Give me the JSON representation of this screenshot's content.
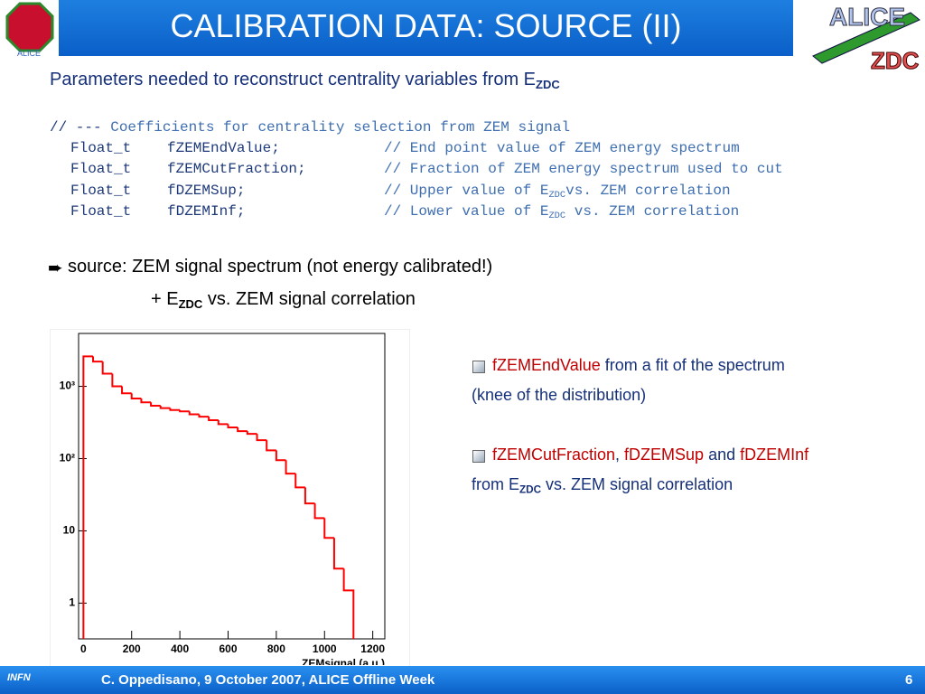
{
  "header": {
    "title": "CALIBRATION DATA: SOURCE (II)",
    "logo_left": "ALICE",
    "logo_right": [
      "ALICE",
      "ZDC"
    ]
  },
  "intro": [
    {
      "text": "Parameters needed to reconstruct centrality variables from E"
    },
    {
      "text": "ZDC",
      "sub": true
    }
  ],
  "code": {
    "heading": [
      {
        "text": "// --- ",
        "color": "#1f3a7a"
      },
      {
        "text": "Coefficients for centrality selection from ZEM signal",
        "color": "#3f6fb0"
      }
    ],
    "lines": [
      {
        "type": "Float_t",
        "name": "fZEMEndValue;",
        "comment": [
          {
            "text": "// End point value of ZEM energy spectrum"
          }
        ]
      },
      {
        "type": "Float_t",
        "name": "fZEMCutFraction;",
        "comment": [
          {
            "text": "// Fraction of ZEM energy spectrum used to cut"
          }
        ]
      },
      {
        "type": "Float_t",
        "name": "fDZEMSup;",
        "comment": [
          {
            "text": "// Upper value of E"
          },
          {
            "text": "ZDC",
            "sub": true
          },
          {
            "text": "vs. ZEM correlation"
          }
        ]
      },
      {
        "type": "Float_t",
        "name": "fDZEMInf;",
        "comment": [
          {
            "text": "// Lower value of E"
          },
          {
            "text": "ZDC",
            "sub": true
          },
          {
            "text": " vs. ZEM correlation"
          }
        ]
      }
    ]
  },
  "source": [
    [
      {
        "text": "source: ZEM signal spectrum (not energy calibrated!)"
      }
    ],
    [
      {
        "text": "+ E"
      },
      {
        "text": "ZDC",
        "sub": true
      },
      {
        "text": " vs. ZEM signal correlation"
      }
    ]
  ],
  "notes": [
    [
      {
        "text": "fZEMEndValue",
        "color": "#c00000"
      },
      {
        "text": " from a fit of the spectrum"
      }
    ],
    [
      {
        "text": "(knee of the distribution)"
      }
    ],
    [
      {
        "text": "fZEMCutFraction",
        "color": "#c00000"
      },
      {
        "text": ", "
      },
      {
        "text": "fDZEMSup",
        "color": "#c00000"
      },
      {
        "text": " and "
      },
      {
        "text": "fDZEMInf",
        "color": "#c00000"
      }
    ],
    [
      {
        "text": "from E"
      },
      {
        "text": "ZDC",
        "sub": true
      },
      {
        "text": " vs. ZEM signal correlation"
      }
    ]
  ],
  "footer": {
    "text": "C. Oppedisano, 9 October 2007, ALICE Offline Week",
    "page": "6",
    "logo": "INFN"
  },
  "chart_data": {
    "type": "histogram",
    "xlabel": "ZEMsignal (a.u.)",
    "color": "#ff0000",
    "log_y": true,
    "bins": [
      0,
      40,
      80,
      120,
      160,
      200,
      240,
      280,
      320,
      360,
      400,
      440,
      480,
      520,
      560,
      600,
      640,
      680,
      720,
      760,
      800,
      840,
      880,
      920,
      960,
      1000,
      1040,
      1080,
      1120
    ],
    "values": [
      2600,
      2200,
      1500,
      1000,
      800,
      680,
      600,
      540,
      500,
      470,
      450,
      410,
      380,
      340,
      300,
      270,
      240,
      220,
      180,
      130,
      95,
      62,
      40,
      24,
      15,
      8,
      3,
      1.5
    ],
    "xlim": [
      -20,
      1250
    ],
    "ylim": [
      0.32,
      5400
    ],
    "xticks": [
      0,
      200,
      400,
      600,
      800,
      1000,
      1200
    ],
    "yticks": [
      1,
      10,
      {
        "value": 100,
        "label": "10²"
      },
      {
        "value": 1000,
        "label": "10³"
      }
    ]
  }
}
